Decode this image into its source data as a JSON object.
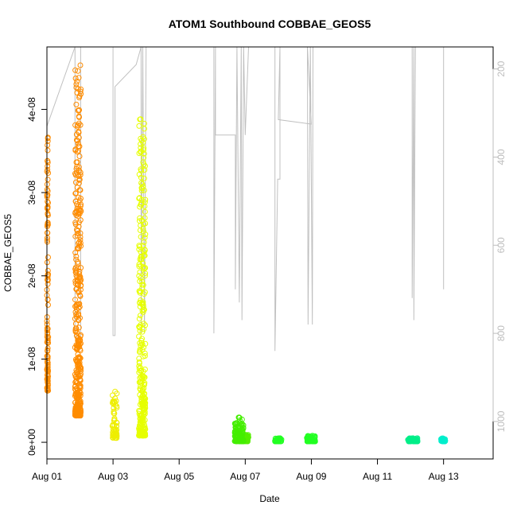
{
  "chart_data": {
    "type": "scatter",
    "title": "ATOM1 Southbound COBBAE_GEOS5",
    "xlabel": "Date",
    "ylabel": "COBBAE_GEOS5",
    "xlim": [
      0,
      13.5
    ],
    "ylim": [
      -2e-09,
      4.75e-08
    ],
    "y2lim": [
      1085,
      150
    ],
    "x_ticks": [
      {
        "value": 0,
        "label": "Aug 01"
      },
      {
        "value": 2,
        "label": "Aug 03"
      },
      {
        "value": 4,
        "label": "Aug 05"
      },
      {
        "value": 6,
        "label": "Aug 07"
      },
      {
        "value": 8,
        "label": "Aug 09"
      },
      {
        "value": 10,
        "label": "Aug 11"
      },
      {
        "value": 12,
        "label": "Aug 13"
      }
    ],
    "y_ticks": [
      {
        "value": 0,
        "label": "0e+00"
      },
      {
        "value": 1e-08,
        "label": "1e-08"
      },
      {
        "value": 2e-08,
        "label": "2e-08"
      },
      {
        "value": 3e-08,
        "label": "3e-08"
      },
      {
        "value": 4e-08,
        "label": "4e-08"
      }
    ],
    "y2_ticks": [
      {
        "value": 200,
        "label": "200"
      },
      {
        "value": 400,
        "label": "400"
      },
      {
        "value": 600,
        "label": "600"
      },
      {
        "value": 800,
        "label": "800"
      },
      {
        "value": 1000,
        "label": "1000"
      }
    ],
    "series": [
      {
        "color": "#ff8c00",
        "x_range": [
          0.0,
          0.04
        ],
        "y_min": 6.2e-09,
        "y_max": 3.68e-08,
        "count": 130
      },
      {
        "color": "#ff8c00",
        "x_range": [
          0.85,
          1.03
        ],
        "y_min": 3.2e-09,
        "y_max": 4.55e-08,
        "count": 380
      },
      {
        "color": "#eeee00",
        "x_range": [
          1.98,
          2.12
        ],
        "y_min": 5e-10,
        "y_max": 6.6e-09,
        "count": 60
      },
      {
        "color": "#e6ff00",
        "x_range": [
          2.78,
          2.98
        ],
        "y_min": 8e-10,
        "y_max": 3.92e-08,
        "count": 320
      },
      {
        "color": "#55ee00",
        "x_range": [
          5.95,
          6.1
        ],
        "y_min": 1e-10,
        "y_max": 1e-09,
        "count": 40
      },
      {
        "color": "#44ee00",
        "x_range": [
          5.68,
          5.95
        ],
        "y_min": 1e-10,
        "y_max": 3e-09,
        "count": 110
      },
      {
        "color": "#22ff22",
        "x_range": [
          6.9,
          7.1
        ],
        "y_min": 1e-10,
        "y_max": 5e-10,
        "count": 45
      },
      {
        "color": "#22ff22",
        "x_range": [
          7.86,
          8.12
        ],
        "y_min": 1e-10,
        "y_max": 8e-10,
        "count": 60
      },
      {
        "color": "#00ee88",
        "x_range": [
          10.92,
          11.22
        ],
        "y_min": 1e-10,
        "y_max": 5e-10,
        "count": 55
      },
      {
        "color": "#00eecc",
        "x_range": [
          11.92,
          12.05
        ],
        "y_min": 1e-10,
        "y_max": 5e-10,
        "count": 45
      }
    ],
    "secondary_line": {
      "color": "#c0c0c0",
      "points": [
        [
          0.0,
          820
        ],
        [
          0.0,
          330
        ],
        [
          0.85,
          150
        ],
        [
          0.85,
          810
        ],
        [
          1.02,
          810
        ],
        [
          1.02,
          150
        ],
        [
          1.8,
          150
        ],
        [
          2.0,
          150
        ],
        [
          2.0,
          805
        ],
        [
          2.06,
          805
        ],
        [
          2.06,
          240
        ],
        [
          2.7,
          190
        ],
        [
          2.85,
          150
        ],
        [
          2.85,
          800
        ],
        [
          2.9,
          150
        ],
        [
          2.95,
          800
        ],
        [
          3.0,
          150
        ],
        [
          3.6,
          150
        ],
        [
          5.05,
          150
        ],
        [
          5.05,
          800
        ],
        [
          5.1,
          150
        ],
        [
          5.1,
          350
        ],
        [
          5.7,
          350
        ],
        [
          5.7,
          700
        ],
        [
          5.75,
          150
        ],
        [
          5.82,
          730
        ],
        [
          5.88,
          150
        ],
        [
          5.9,
          770
        ],
        [
          5.95,
          150
        ],
        [
          6.0,
          350
        ],
        [
          6.1,
          150
        ],
        [
          6.9,
          150
        ],
        [
          6.9,
          840
        ],
        [
          6.98,
          450
        ],
        [
          7.05,
          450
        ],
        [
          7.05,
          150
        ],
        [
          7.0,
          315
        ],
        [
          8.0,
          325
        ],
        [
          7.88,
          150
        ],
        [
          7.9,
          780
        ],
        [
          7.97,
          150
        ],
        [
          8.03,
          780
        ],
        [
          8.05,
          150
        ],
        [
          11.05,
          150
        ],
        [
          11.05,
          720
        ],
        [
          11.1,
          150
        ],
        [
          11.1,
          770
        ],
        [
          11.15,
          150
        ],
        [
          12.0,
          150
        ],
        [
          12.0,
          700
        ]
      ]
    }
  }
}
